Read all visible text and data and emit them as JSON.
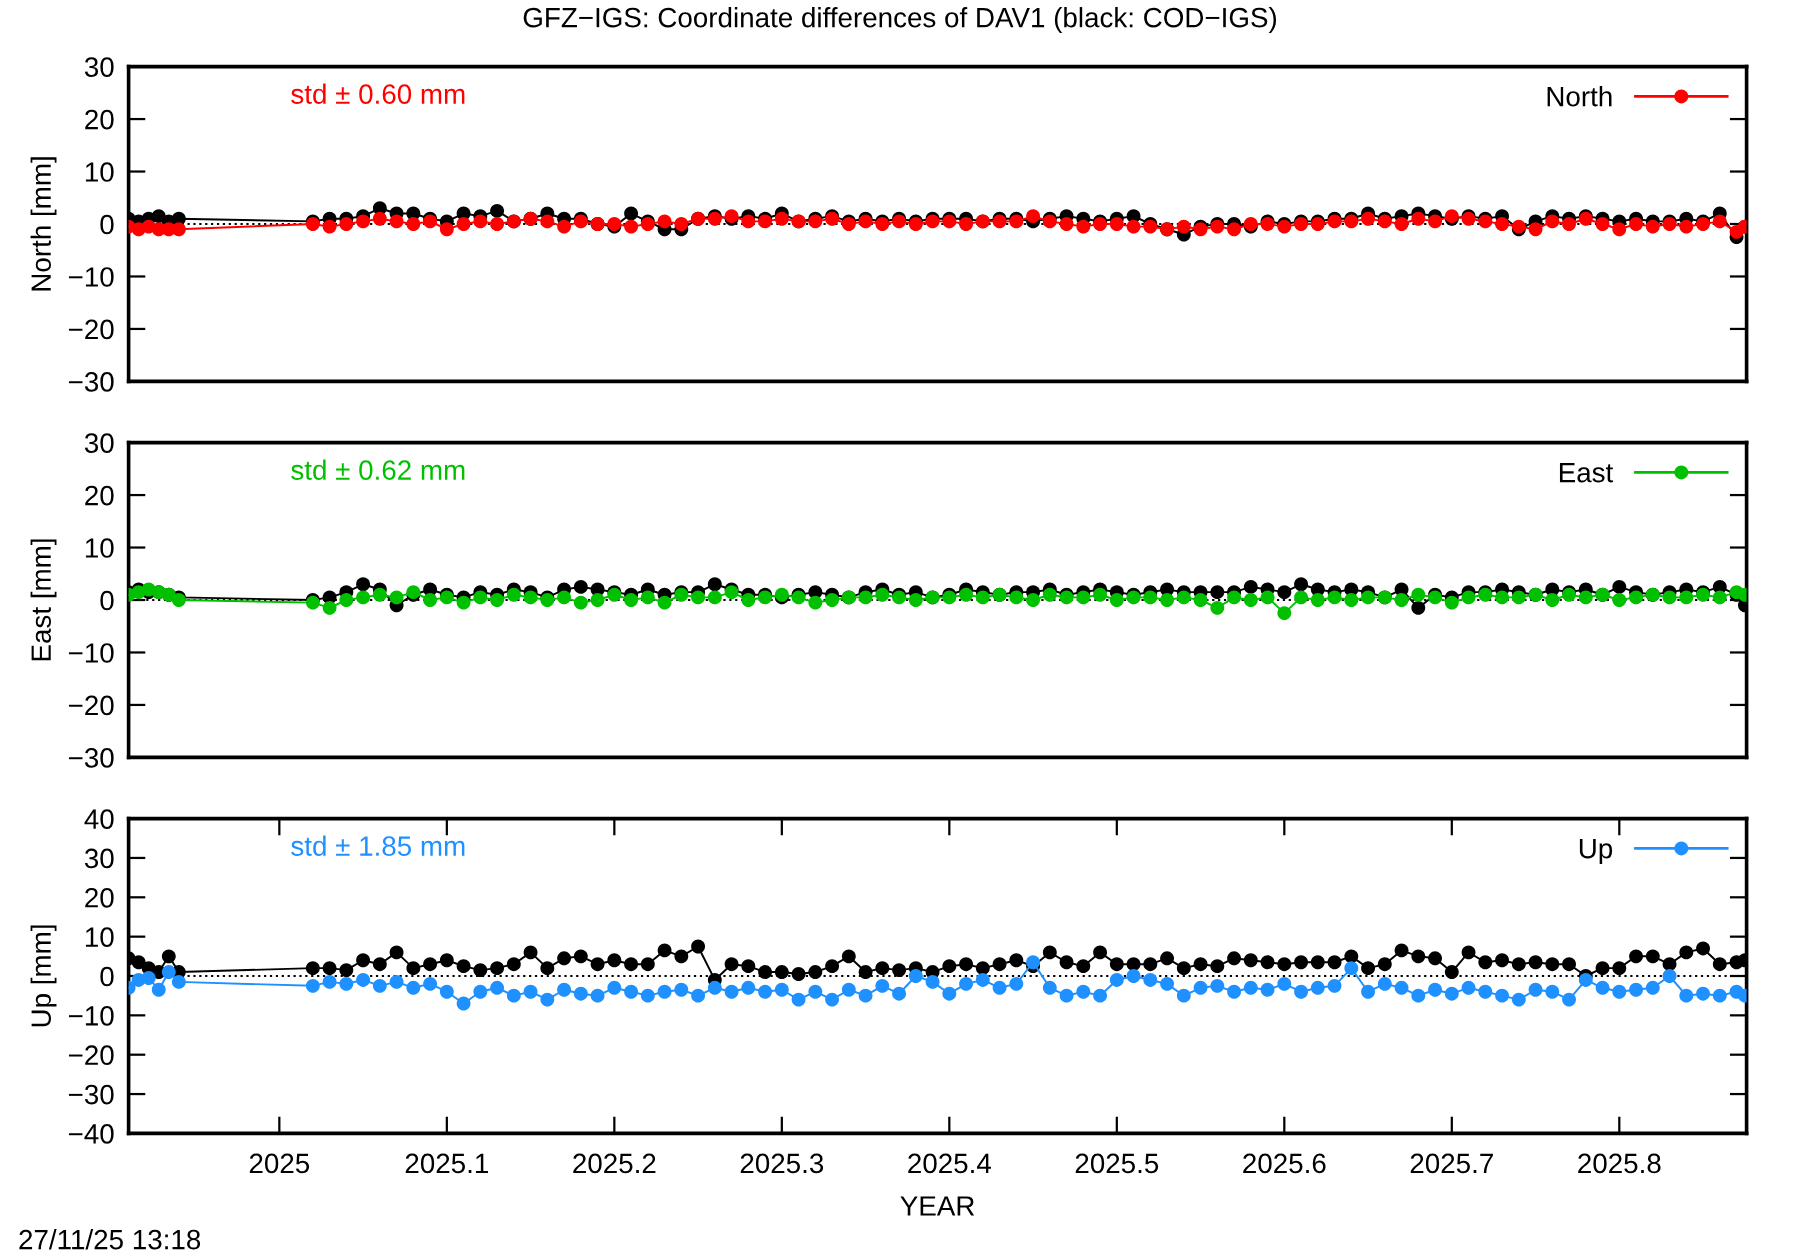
{
  "chart_data": [
    {
      "type": "line",
      "title": "GFZ−IGS: Coordinate differences of DAV1 (black: COD−IGS)",
      "ylabel": "North [mm]",
      "annotations": [
        "std ± 0.60 mm"
      ],
      "x": [
        2024.91,
        2024.916,
        2024.922,
        2024.928,
        2024.934,
        2024.94,
        2025.02,
        2025.03,
        2025.04,
        2025.05,
        2025.06,
        2025.07,
        2025.08,
        2025.09,
        2025.1,
        2025.11,
        2025.12,
        2025.13,
        2025.14,
        2025.15,
        2025.16,
        2025.17,
        2025.18,
        2025.19,
        2025.2,
        2025.21,
        2025.22,
        2025.23,
        2025.24,
        2025.25,
        2025.26,
        2025.27,
        2025.28,
        2025.29,
        2025.3,
        2025.31,
        2025.32,
        2025.33,
        2025.34,
        2025.35,
        2025.36,
        2025.37,
        2025.38,
        2025.39,
        2025.4,
        2025.41,
        2025.42,
        2025.43,
        2025.44,
        2025.45,
        2025.46,
        2025.47,
        2025.48,
        2025.49,
        2025.5,
        2025.51,
        2025.52,
        2025.53,
        2025.54,
        2025.55,
        2025.56,
        2025.57,
        2025.58,
        2025.59,
        2025.6,
        2025.61,
        2025.62,
        2025.63,
        2025.64,
        2025.65,
        2025.66,
        2025.67,
        2025.68,
        2025.69,
        2025.7,
        2025.71,
        2025.72,
        2025.73,
        2025.74,
        2025.75,
        2025.76,
        2025.77,
        2025.78,
        2025.79,
        2025.8,
        2025.81,
        2025.82,
        2025.83,
        2025.84,
        2025.85,
        2025.86,
        2025.87,
        2025.875
      ],
      "series": [
        {
          "color": "#000000",
          "values": [
            1,
            0.5,
            1,
            1.5,
            0.5,
            1,
            0.5,
            1,
            1,
            1.5,
            3,
            2,
            2,
            1,
            0.5,
            2,
            1.5,
            2.5,
            0.5,
            1,
            2,
            1,
            1,
            0,
            -0.5,
            2,
            0.5,
            -1,
            -1,
            1,
            1.5,
            1,
            1.5,
            1,
            2,
            0.5,
            1,
            1.5,
            0.5,
            1,
            0.5,
            1,
            0.5,
            1,
            1,
            1,
            0.5,
            1,
            1,
            0.5,
            1,
            1.5,
            1,
            0.5,
            1,
            1.5,
            0,
            -1,
            -2,
            -0.5,
            0,
            0,
            -0.5,
            0.5,
            0,
            0.5,
            0.5,
            1,
            1,
            2,
            1,
            1.5,
            2,
            1.5,
            1,
            1.5,
            1,
            1.5,
            -1,
            0.5,
            1.5,
            1,
            1.5,
            1,
            0.5,
            1,
            0.5,
            0.5,
            1,
            0.5,
            2,
            -2.5,
            -0.5
          ]
        },
        {
          "name": "North",
          "color": "#ff0000",
          "values": [
            -0.5,
            -1,
            -0.5,
            -1,
            -1,
            -1,
            0,
            -0.5,
            0,
            0.5,
            1,
            0.5,
            0,
            0.5,
            -1,
            0,
            0.5,
            0,
            0.5,
            1,
            0.5,
            -0.5,
            0.5,
            0,
            0,
            -0.5,
            0,
            0.5,
            0,
            1,
            1,
            1.5,
            0.5,
            0.5,
            1,
            0.5,
            0.5,
            1,
            0,
            0.5,
            0,
            0.5,
            0,
            0.5,
            0.5,
            0,
            0.5,
            0.5,
            0.5,
            1.5,
            0.5,
            0,
            -0.5,
            0,
            0,
            -0.5,
            -0.5,
            -1,
            -0.5,
            -1,
            -0.5,
            -1,
            0,
            0,
            -0.5,
            0,
            0,
            0.5,
            0.5,
            1,
            0.5,
            0,
            1,
            0.5,
            1.5,
            1,
            0.5,
            0,
            -0.5,
            -1,
            0.5,
            0,
            1,
            0,
            -1,
            0,
            -0.5,
            0,
            -0.5,
            0,
            0.5,
            -1.5,
            -0.5
          ]
        }
      ],
      "xlim": [
        2024.91,
        2025.876
      ],
      "ylim": [
        -30,
        30
      ],
      "yticks": [
        -30,
        -20,
        -10,
        0,
        10,
        20,
        30
      ],
      "tick_labels": "y",
      "ref_lines": [
        {
          "axis": "y",
          "value": 0,
          "line_style": "dotted",
          "color": "#000000"
        }
      ],
      "legend": "top right",
      "marker": "circle",
      "line_style": "solid"
    },
    {
      "type": "line",
      "ylabel": "East [mm]",
      "annotations": [
        "std ± 0.62 mm"
      ],
      "x": [
        2024.91,
        2024.916,
        2024.922,
        2024.928,
        2024.934,
        2024.94,
        2025.02,
        2025.03,
        2025.04,
        2025.05,
        2025.06,
        2025.07,
        2025.08,
        2025.09,
        2025.1,
        2025.11,
        2025.12,
        2025.13,
        2025.14,
        2025.15,
        2025.16,
        2025.17,
        2025.18,
        2025.19,
        2025.2,
        2025.21,
        2025.22,
        2025.23,
        2025.24,
        2025.25,
        2025.26,
        2025.27,
        2025.28,
        2025.29,
        2025.3,
        2025.31,
        2025.32,
        2025.33,
        2025.34,
        2025.35,
        2025.36,
        2025.37,
        2025.38,
        2025.39,
        2025.4,
        2025.41,
        2025.42,
        2025.43,
        2025.44,
        2025.45,
        2025.46,
        2025.47,
        2025.48,
        2025.49,
        2025.5,
        2025.51,
        2025.52,
        2025.53,
        2025.54,
        2025.55,
        2025.56,
        2025.57,
        2025.58,
        2025.59,
        2025.6,
        2025.61,
        2025.62,
        2025.63,
        2025.64,
        2025.65,
        2025.66,
        2025.67,
        2025.68,
        2025.69,
        2025.7,
        2025.71,
        2025.72,
        2025.73,
        2025.74,
        2025.75,
        2025.76,
        2025.77,
        2025.78,
        2025.79,
        2025.8,
        2025.81,
        2025.82,
        2025.83,
        2025.84,
        2025.85,
        2025.86,
        2025.87,
        2025.875
      ],
      "series": [
        {
          "color": "#000000",
          "values": [
            1.5,
            2,
            1.5,
            1.5,
            1,
            0.5,
            0,
            0.5,
            1.5,
            3,
            2,
            -1,
            1,
            2,
            1,
            0.5,
            1.5,
            1,
            2,
            1.5,
            0.5,
            2,
            2.5,
            2,
            1.5,
            1,
            2,
            1,
            1.5,
            1.5,
            3,
            2,
            1,
            1,
            0.5,
            1,
            1.5,
            1,
            0.5,
            1.5,
            2,
            1,
            1.5,
            0.5,
            1,
            2,
            1.5,
            1,
            1.5,
            1.5,
            2,
            1,
            1.5,
            2,
            1.5,
            1,
            1.5,
            2,
            1.5,
            1.5,
            1.5,
            1.5,
            2.5,
            2,
            1.5,
            3,
            2,
            1.5,
            2,
            1.5,
            0.5,
            2,
            -1.5,
            1,
            0.5,
            1.5,
            1.5,
            2,
            1.5,
            1,
            2,
            1.5,
            2,
            1,
            2.5,
            1.5,
            1,
            1.5,
            2,
            1.5,
            2.5,
            1,
            -1
          ]
        },
        {
          "name": "East",
          "color": "#00c000",
          "values": [
            1,
            1.5,
            2,
            1.5,
            1,
            0,
            -0.5,
            -1.5,
            0,
            0.5,
            1,
            0.5,
            1.5,
            0,
            0.5,
            -0.5,
            0.5,
            0,
            1,
            0.5,
            0,
            0.5,
            -0.5,
            0,
            1,
            0,
            0.5,
            -0.5,
            1,
            0.5,
            0.5,
            1.5,
            0,
            0.5,
            1,
            0.5,
            -0.5,
            0,
            0.5,
            0.5,
            1,
            0.5,
            0,
            0.5,
            0.5,
            1,
            0.5,
            1,
            0.5,
            0,
            1,
            0.5,
            0.5,
            1,
            0,
            0.5,
            0.5,
            0,
            0.5,
            0,
            -1.5,
            0.5,
            0,
            0.5,
            -2.5,
            0.5,
            0,
            0.5,
            0,
            0.5,
            0.5,
            0,
            1,
            0.5,
            -0.5,
            0.5,
            1,
            0.5,
            0.5,
            1,
            0,
            1,
            0.5,
            1,
            0,
            0.5,
            1,
            0.5,
            0.5,
            1,
            0.5,
            1.5,
            1
          ]
        }
      ],
      "xlim": [
        2024.91,
        2025.876
      ],
      "ylim": [
        -30,
        30
      ],
      "yticks": [
        -30,
        -20,
        -10,
        0,
        10,
        20,
        30
      ],
      "tick_labels": "y",
      "ref_lines": [
        {
          "axis": "y",
          "value": 0,
          "line_style": "dotted",
          "color": "#000000"
        }
      ],
      "legend": "top right",
      "marker": "circle",
      "line_style": "solid"
    },
    {
      "type": "line",
      "xlabel": "YEAR",
      "ylabel": "Up [mm]",
      "annotations": [
        "std ± 1.85 mm",
        "27/11/25 13:18"
      ],
      "x": [
        2024.91,
        2024.916,
        2024.922,
        2024.928,
        2024.934,
        2024.94,
        2025.02,
        2025.03,
        2025.04,
        2025.05,
        2025.06,
        2025.07,
        2025.08,
        2025.09,
        2025.1,
        2025.11,
        2025.12,
        2025.13,
        2025.14,
        2025.15,
        2025.16,
        2025.17,
        2025.18,
        2025.19,
        2025.2,
        2025.21,
        2025.22,
        2025.23,
        2025.24,
        2025.25,
        2025.26,
        2025.27,
        2025.28,
        2025.29,
        2025.3,
        2025.31,
        2025.32,
        2025.33,
        2025.34,
        2025.35,
        2025.36,
        2025.37,
        2025.38,
        2025.39,
        2025.4,
        2025.41,
        2025.42,
        2025.43,
        2025.44,
        2025.45,
        2025.46,
        2025.47,
        2025.48,
        2025.49,
        2025.5,
        2025.51,
        2025.52,
        2025.53,
        2025.54,
        2025.55,
        2025.56,
        2025.57,
        2025.58,
        2025.59,
        2025.6,
        2025.61,
        2025.62,
        2025.63,
        2025.64,
        2025.65,
        2025.66,
        2025.67,
        2025.68,
        2025.69,
        2025.7,
        2025.71,
        2025.72,
        2025.73,
        2025.74,
        2025.75,
        2025.76,
        2025.77,
        2025.78,
        2025.79,
        2025.8,
        2025.81,
        2025.82,
        2025.83,
        2025.84,
        2025.85,
        2025.86,
        2025.87,
        2025.875
      ],
      "series": [
        {
          "color": "#000000",
          "values": [
            4.5,
            3.5,
            2,
            1,
            5,
            1,
            2,
            2,
            1.5,
            4,
            3,
            6,
            2,
            3,
            4,
            2.5,
            1.5,
            2,
            3,
            6,
            2,
            4.5,
            5,
            3,
            4,
            3,
            3,
            6.5,
            5,
            7.5,
            -1,
            3,
            2.5,
            1,
            1,
            0.5,
            1,
            2.5,
            5,
            1,
            2,
            1.5,
            2,
            1,
            2.5,
            3,
            2,
            3,
            4,
            2.5,
            6,
            3.5,
            2.5,
            6,
            3,
            3,
            3,
            4.5,
            2,
            3,
            2.5,
            4.5,
            4,
            3.5,
            3,
            3.5,
            3.5,
            3.5,
            5,
            2,
            3,
            6.5,
            5,
            4.5,
            1,
            6,
            3.5,
            4,
            3,
            3.5,
            3,
            3,
            0,
            2,
            2,
            5,
            5,
            3,
            6,
            7,
            3,
            3.5,
            4
          ]
        },
        {
          "name": "Up",
          "color": "#1e90ff",
          "values": [
            -3,
            -1,
            -0.5,
            -3.5,
            1,
            -1.5,
            -2.5,
            -1.5,
            -2,
            -1,
            -2.5,
            -1.5,
            -3,
            -2,
            -4,
            -7,
            -4,
            -3,
            -5,
            -4,
            -6,
            -3.5,
            -4.5,
            -5,
            -3,
            -4,
            -5,
            -4,
            -3.5,
            -5,
            -3,
            -4,
            -3,
            -4,
            -3.5,
            -6,
            -4,
            -6,
            -3.5,
            -5,
            -2.5,
            -4.5,
            0,
            -1.5,
            -4.5,
            -2,
            -1,
            -3,
            -2,
            3.5,
            -3,
            -5,
            -4,
            -5,
            -1,
            0,
            -1,
            -2,
            -5,
            -3,
            -2.5,
            -4,
            -3,
            -3.5,
            -2,
            -4,
            -3,
            -2.5,
            2,
            -4,
            -2,
            -3,
            -5,
            -3.5,
            -4.5,
            -3,
            -4,
            -5,
            -6,
            -3.5,
            -4,
            -6,
            -1,
            -3,
            -4,
            -3.5,
            -3,
            0,
            -5,
            -4.5,
            -5,
            -4,
            -5
          ]
        }
      ],
      "xlim": [
        2024.91,
        2025.876
      ],
      "xticks": [
        2025,
        2025.1,
        2025.2,
        2025.3,
        2025.4,
        2025.5,
        2025.6,
        2025.7,
        2025.8
      ],
      "ylim": [
        -40,
        40
      ],
      "yticks": [
        -40,
        -30,
        -20,
        -10,
        0,
        10,
        20,
        30,
        40
      ],
      "ref_lines": [
        {
          "axis": "y",
          "value": 0,
          "line_style": "dotted",
          "color": "#000000"
        }
      ],
      "legend": "top right",
      "marker": "circle",
      "line_style": "solid"
    }
  ]
}
